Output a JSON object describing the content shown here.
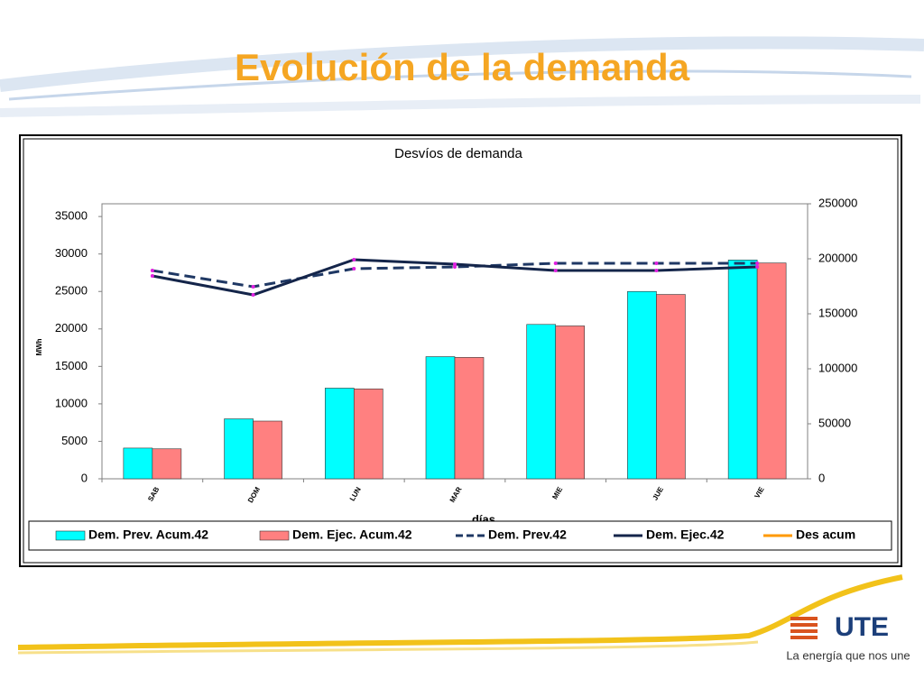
{
  "header": {
    "title": "Evolución de la demanda"
  },
  "chart_data": {
    "type": "combo",
    "title": "Desvíos de demanda",
    "x_label": "días",
    "y_label": "MWh",
    "categories": [
      "SAB",
      "DOM",
      "LUN",
      "MAR",
      "MIE",
      "JUE",
      "VIE"
    ],
    "series": [
      {
        "name": "Dem. Prev. Acum.42",
        "type": "bar",
        "color": "#00ffff",
        "values": [
          4100,
          8000,
          12100,
          16300,
          20600,
          25000,
          29200
        ]
      },
      {
        "name": "Dem. Ejec. Acum.42",
        "type": "bar",
        "color": "#ff8080",
        "values": [
          4000,
          7700,
          12000,
          16200,
          20400,
          24600,
          28800
        ]
      },
      {
        "name": "Dem. Prev.42",
        "type": "line",
        "dash": true,
        "axis": "y2",
        "color": "#1f3864",
        "values": [
          189300,
          174600,
          191000,
          192600,
          195900,
          195900,
          195900
        ]
      },
      {
        "name": "Dem. Ejec.42",
        "type": "line",
        "dash": false,
        "axis": "y2",
        "color": "#14254a",
        "values": [
          184400,
          167200,
          199200,
          195100,
          189300,
          189300,
          192600
        ]
      },
      {
        "name": "Des acum",
        "type": "line",
        "dash": false,
        "axis": "y2",
        "color": "#ff9900",
        "values": [
          null,
          null,
          null,
          null,
          null,
          null,
          null
        ]
      }
    ],
    "ylim": [
      0,
      36700
    ],
    "yticks": [
      0,
      5000,
      10000,
      15000,
      20000,
      25000,
      30000,
      35000
    ],
    "y2lim": [
      0,
      250000
    ],
    "y2ticks": [
      0,
      50000,
      100000,
      150000,
      200000,
      250000
    ],
    "grid": false,
    "legend": "bottom"
  },
  "logo": {
    "name": "UTE",
    "tagline": "La energía que nos une"
  }
}
